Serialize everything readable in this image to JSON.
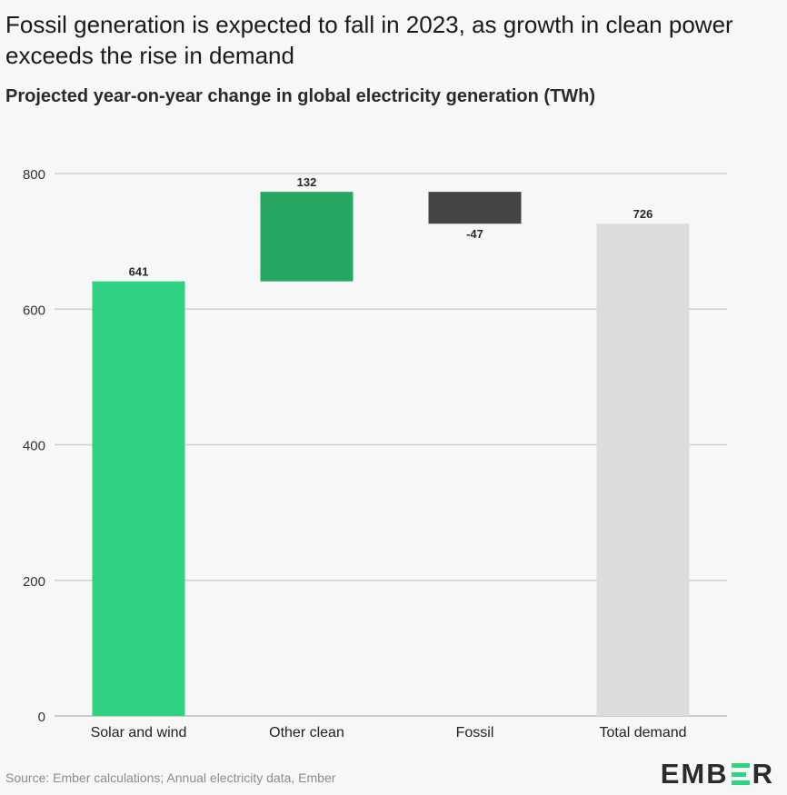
{
  "header": {
    "title": "Fossil generation is expected to fall in 2023, as growth in clean power exceeds the rise in demand",
    "subtitle": "Projected year-on-year change in global electricity generation (TWh)"
  },
  "footer": {
    "source": "Source: Ember calculations; Annual electricity data, Ember",
    "logo_left": "EMB",
    "logo_right": "R"
  },
  "colors": {
    "solar_wind": "#2ed282",
    "other_clean": "#25a762",
    "fossil": "#444444",
    "demand": "#dcdcdc",
    "grid": "#cfcfcf",
    "brand": "#2fd480"
  },
  "chart_data": {
    "type": "bar",
    "subtype": "waterfall",
    "categories": [
      "Solar and wind",
      "Other clean",
      "Fossil",
      "Total demand"
    ],
    "values": [
      641,
      132,
      -47,
      726
    ],
    "labels": [
      "641",
      "132",
      "-47",
      "726"
    ],
    "ylim": [
      0,
      800
    ],
    "yticks": [
      0,
      200,
      400,
      600,
      800
    ],
    "grid": true,
    "legend": "none"
  }
}
